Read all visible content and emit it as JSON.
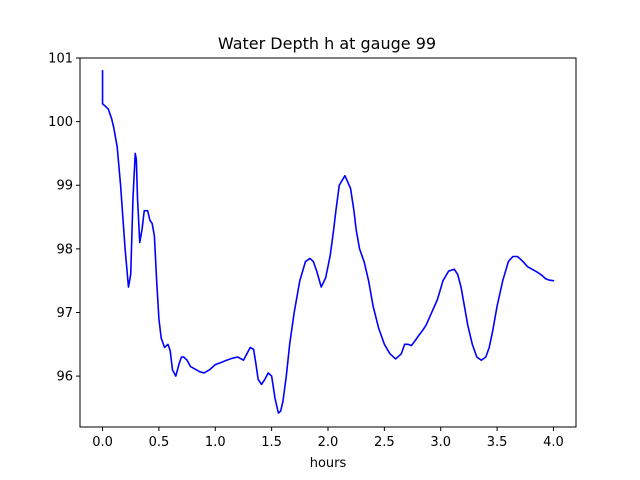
{
  "chart_data": {
    "type": "line",
    "title": "Water Depth h at gauge 99",
    "xlabel": "hours",
    "ylabel": "",
    "xlim": [
      -0.2,
      4.2
    ],
    "ylim": [
      95.2,
      101.0
    ],
    "xticks": [
      0.0,
      0.5,
      1.0,
      1.5,
      2.0,
      2.5,
      3.0,
      3.5,
      4.0
    ],
    "xtick_labels": [
      "0.0",
      "0.5",
      "1.0",
      "1.5",
      "2.0",
      "2.5",
      "3.0",
      "3.5",
      "4.0"
    ],
    "yticks": [
      96,
      97,
      98,
      99,
      100,
      101
    ],
    "ytick_labels": [
      "96",
      "97",
      "98",
      "99",
      "100",
      "101"
    ],
    "grid": false,
    "series": [
      {
        "color": "#0000ff",
        "x": [
          0.0,
          0.0,
          0.0,
          0.02,
          0.05,
          0.08,
          0.1,
          0.13,
          0.16,
          0.2,
          0.23,
          0.25,
          0.27,
          0.29,
          0.3,
          0.31,
          0.33,
          0.35,
          0.37,
          0.4,
          0.42,
          0.44,
          0.46,
          0.48,
          0.5,
          0.52,
          0.55,
          0.58,
          0.6,
          0.62,
          0.65,
          0.68,
          0.7,
          0.72,
          0.75,
          0.78,
          0.8,
          0.83,
          0.86,
          0.9,
          0.95,
          1.0,
          1.03,
          1.06,
          1.1,
          1.15,
          1.2,
          1.25,
          1.28,
          1.31,
          1.34,
          1.36,
          1.38,
          1.41,
          1.44,
          1.47,
          1.5,
          1.53,
          1.56,
          1.58,
          1.6,
          1.63,
          1.66,
          1.7,
          1.75,
          1.8,
          1.84,
          1.87,
          1.9,
          1.94,
          1.98,
          2.02,
          2.05,
          2.07,
          2.1,
          2.15,
          2.2,
          2.23,
          2.25,
          2.28,
          2.32,
          2.36,
          2.4,
          2.45,
          2.5,
          2.55,
          2.6,
          2.65,
          2.68,
          2.71,
          2.74,
          2.77,
          2.81,
          2.84,
          2.87,
          2.92,
          2.97,
          3.02,
          3.07,
          3.12,
          3.15,
          3.18,
          3.21,
          3.24,
          3.28,
          3.32,
          3.36,
          3.4,
          3.43,
          3.46,
          3.5,
          3.55,
          3.6,
          3.64,
          3.68,
          3.7,
          3.73,
          3.77,
          3.82,
          3.86,
          3.9,
          3.93,
          3.96,
          4.0
        ],
        "y": [
          100.8,
          100.3,
          100.28,
          100.25,
          100.2,
          100.05,
          99.9,
          99.6,
          99.0,
          98.0,
          97.4,
          97.6,
          98.8,
          99.5,
          99.4,
          98.8,
          98.1,
          98.3,
          98.6,
          98.6,
          98.45,
          98.4,
          98.2,
          97.5,
          96.9,
          96.6,
          96.45,
          96.5,
          96.4,
          96.1,
          96.0,
          96.2,
          96.3,
          96.3,
          96.25,
          96.15,
          96.13,
          96.1,
          96.07,
          96.05,
          96.1,
          96.18,
          96.2,
          96.22,
          96.25,
          96.28,
          96.3,
          96.25,
          96.35,
          96.45,
          96.42,
          96.2,
          95.95,
          95.87,
          95.95,
          96.05,
          96.0,
          95.65,
          95.42,
          95.45,
          95.6,
          96.0,
          96.5,
          97.0,
          97.5,
          97.8,
          97.85,
          97.8,
          97.65,
          97.4,
          97.55,
          97.9,
          98.3,
          98.6,
          99.0,
          99.15,
          98.95,
          98.6,
          98.3,
          98.0,
          97.8,
          97.5,
          97.1,
          96.75,
          96.5,
          96.35,
          96.27,
          96.35,
          96.5,
          96.5,
          96.48,
          96.55,
          96.65,
          96.72,
          96.8,
          97.0,
          97.2,
          97.5,
          97.65,
          97.68,
          97.6,
          97.4,
          97.1,
          96.8,
          96.5,
          96.3,
          96.25,
          96.3,
          96.45,
          96.7,
          97.1,
          97.5,
          97.8,
          97.88,
          97.88,
          97.85,
          97.8,
          97.72,
          97.67,
          97.63,
          97.58,
          97.53,
          97.51,
          97.5
        ]
      }
    ]
  }
}
